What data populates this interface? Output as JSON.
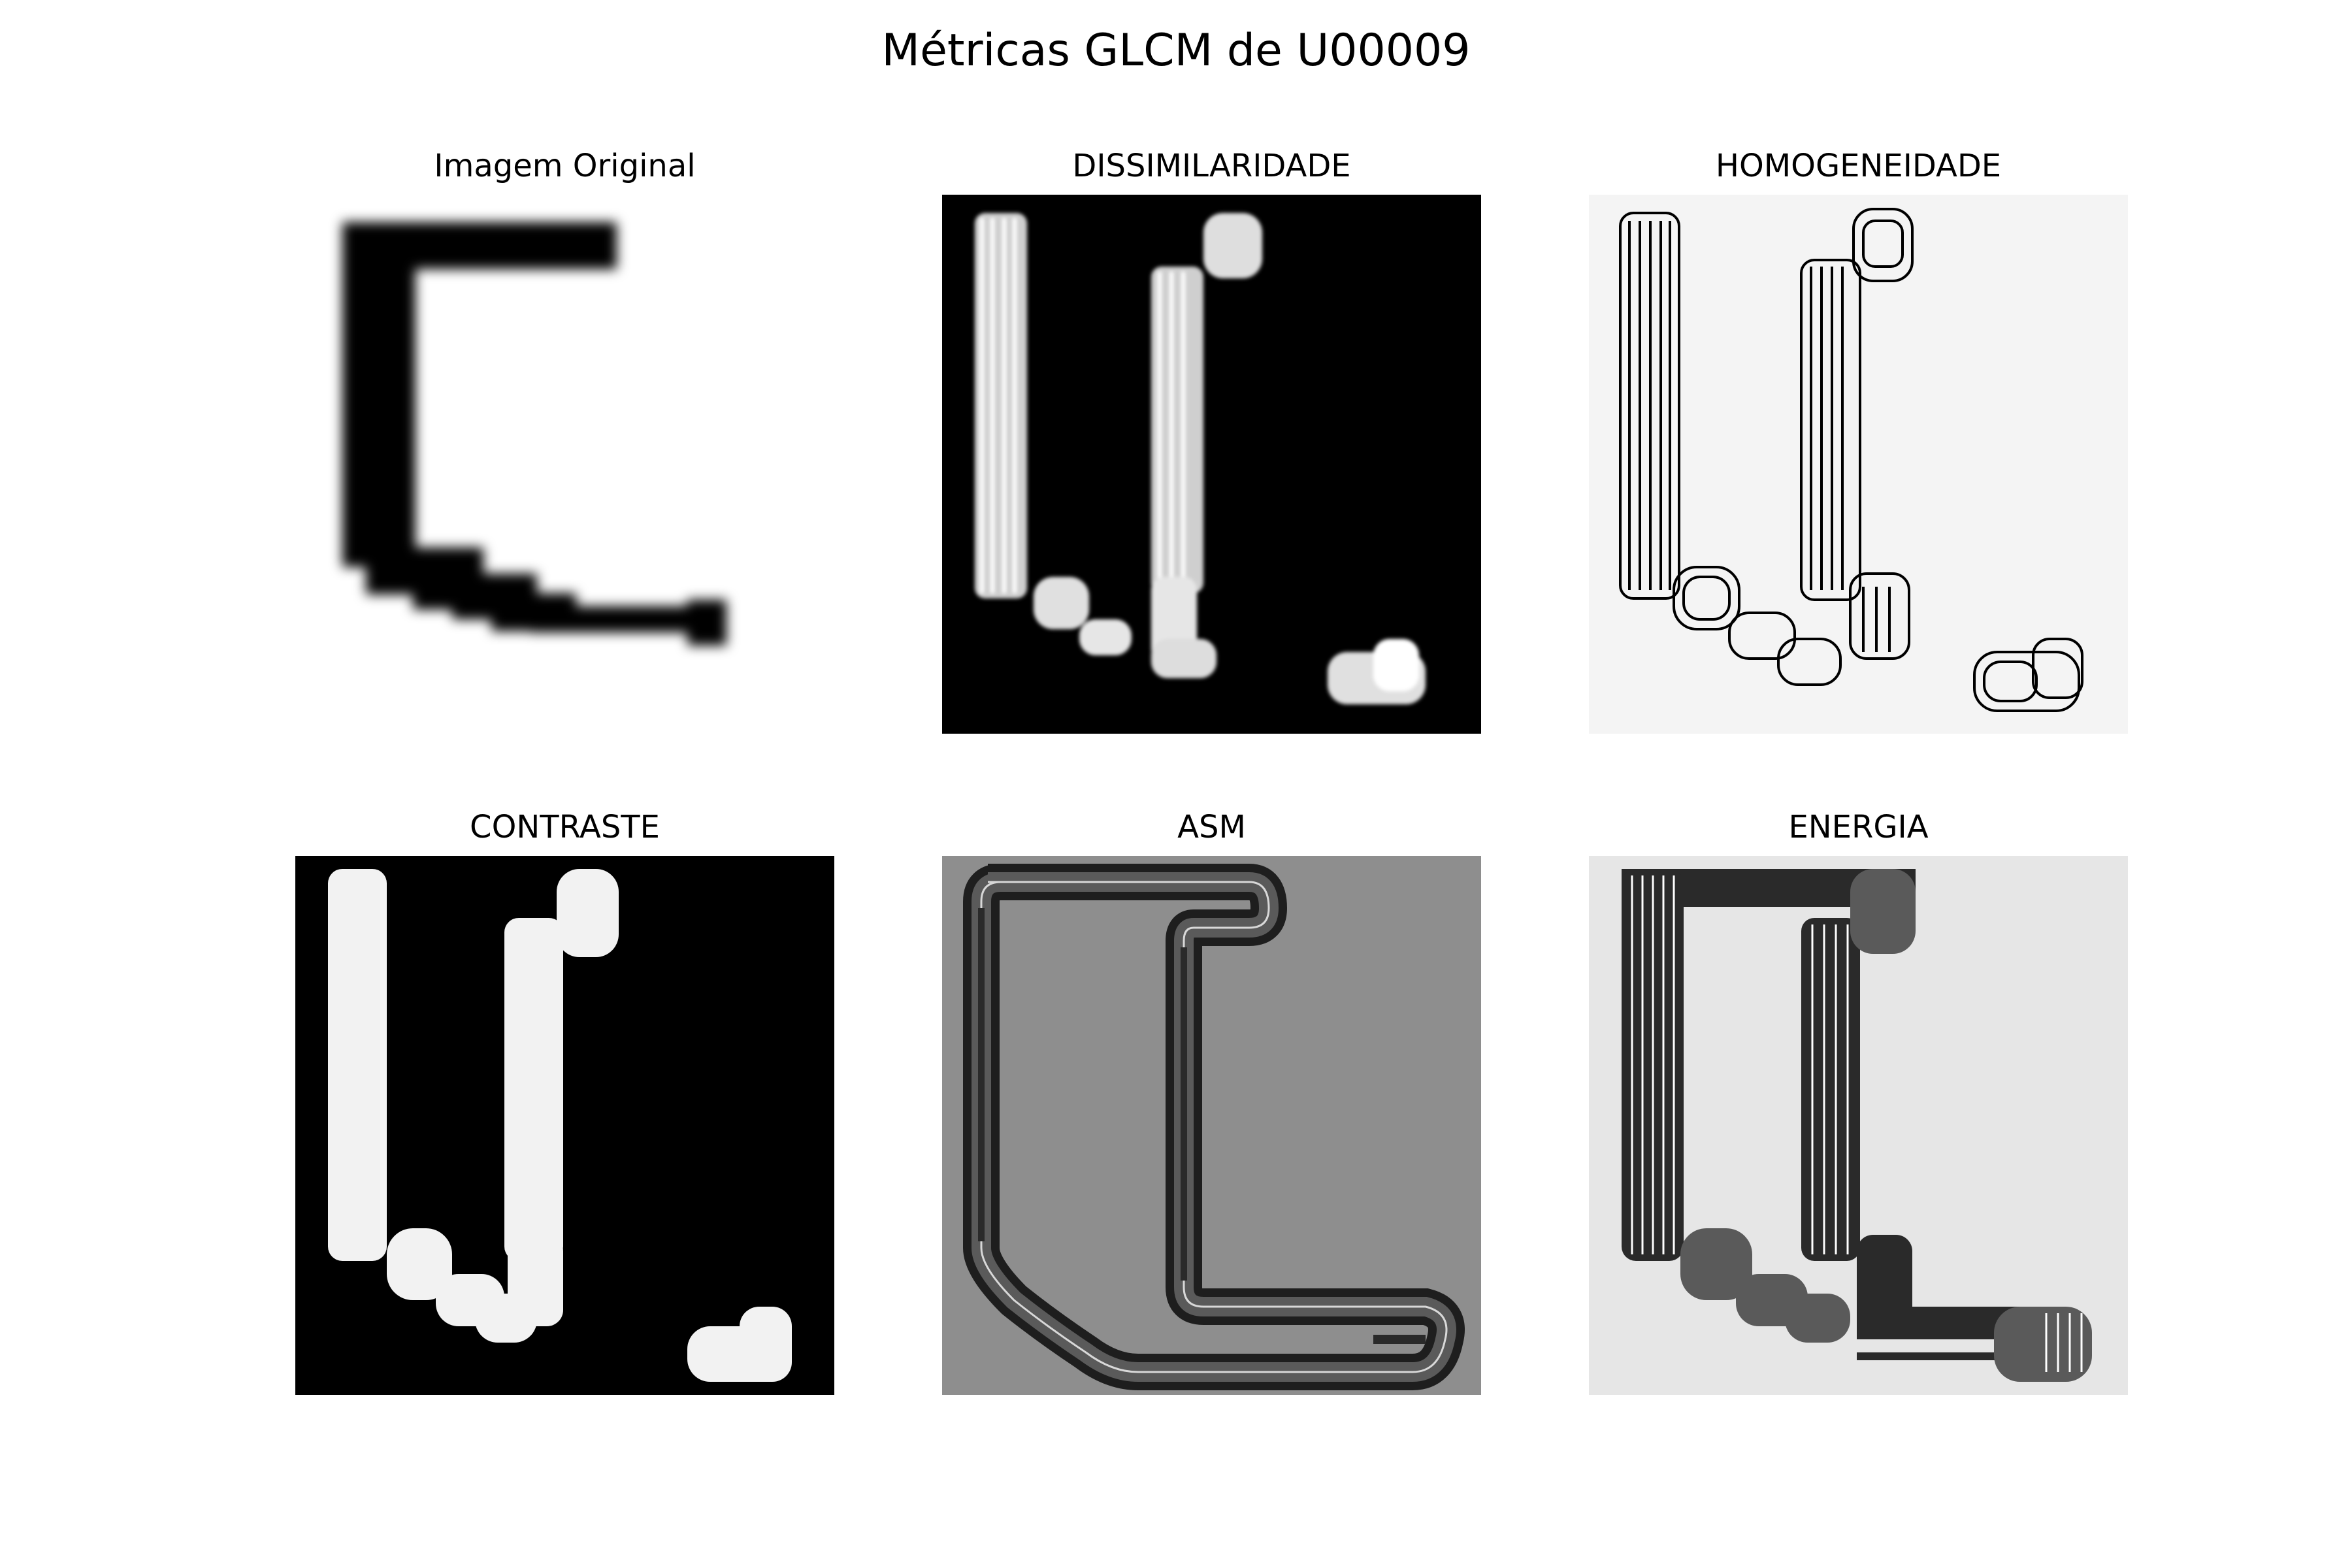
{
  "figure": {
    "title": "Métricas GLCM de U00009"
  },
  "panels": [
    {
      "title": "Imagem Original",
      "background": "#ffffff",
      "ink": "#000000"
    },
    {
      "title": "DISSIMILARIDADE",
      "background": "#000000",
      "ink": "#ffffff"
    },
    {
      "title": "HOMOGENEIDADE",
      "background": "#f4f4f4",
      "ink": "#000000"
    },
    {
      "title": "CONTRASTE",
      "background": "#000000",
      "ink": "#f2f2f2"
    },
    {
      "title": "ASM",
      "background": "#8e8e8e",
      "ink": "#1e1e1e"
    },
    {
      "title": "ENERGIA",
      "background": "#e6e6e6",
      "ink": "#2a2a2a"
    }
  ]
}
